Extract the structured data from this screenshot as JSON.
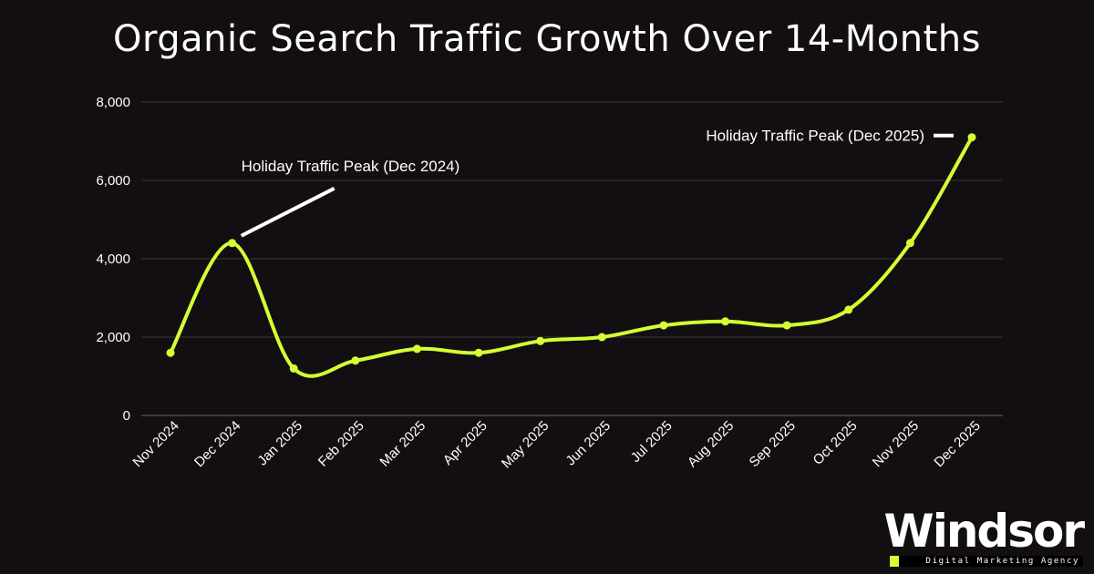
{
  "chart_data": {
    "type": "line",
    "title": "Organic Search Traffic Growth Over 14-Months",
    "categories": [
      "Nov 2024",
      "Dec 2024",
      "Jan 2025",
      "Feb 2025",
      "Mar 2025",
      "Apr 2025",
      "May 2025",
      "Jun 2025",
      "Jul 2025",
      "Aug 2025",
      "Sep 2025",
      "Oct 2025",
      "Nov 2025",
      "Dec 2025"
    ],
    "series": [
      {
        "values": [
          1600,
          4400,
          1200,
          1400,
          1700,
          1600,
          1900,
          2000,
          2300,
          2400,
          2300,
          2700,
          4400,
          7100
        ]
      }
    ],
    "ylim": [
      0,
      8000
    ],
    "yticks": [
      "0",
      "2,000",
      "4,000",
      "6,000",
      "8,000"
    ],
    "xlabel": "",
    "ylabel": "",
    "grid": true,
    "line_color": "#d4ff33",
    "annotations": [
      {
        "text": "Holiday Traffic Peak (Dec 2024)",
        "category": "Dec 2024"
      },
      {
        "text": "Holiday Traffic Peak (Dec 2025)",
        "category": "Dec 2025"
      }
    ]
  },
  "logo": {
    "name": "Windsor",
    "tagline": "Digital Marketing Agency",
    "accent_color": "#d4ff33"
  }
}
